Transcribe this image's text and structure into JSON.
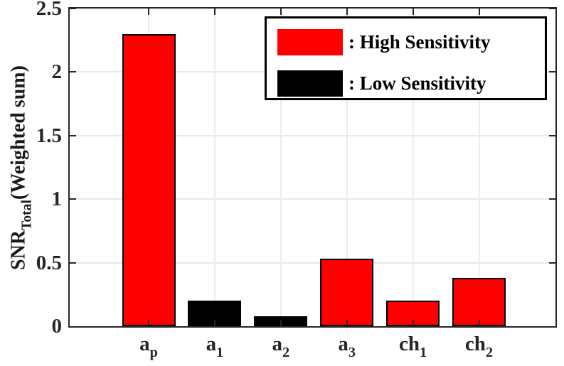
{
  "chart_data": {
    "type": "bar",
    "title": "",
    "categories": [
      {
        "base": "a",
        "sub": "p"
      },
      {
        "base": "a",
        "sub": "1"
      },
      {
        "base": "a",
        "sub": "2"
      },
      {
        "base": "a",
        "sub": "3"
      },
      {
        "base": "ch",
        "sub": "1"
      },
      {
        "base": "ch",
        "sub": "2"
      }
    ],
    "values": [
      2.3,
      0.2,
      0.08,
      0.53,
      0.2,
      0.38
    ],
    "bar_sensitivity": [
      "high",
      "low",
      "low",
      "high",
      "high",
      "high"
    ],
    "series_colors": {
      "high": "#ff0000",
      "low": "#000000"
    },
    "ylabel": {
      "main": "SNR",
      "sub": "Total",
      "rest": "(Weighted sum)"
    },
    "ytick_labels": [
      "0",
      "0.5",
      "1",
      "1.5",
      "2",
      "2.5"
    ],
    "ytick_values": [
      0,
      0.5,
      1,
      1.5,
      2,
      2.5
    ],
    "ylim": [
      0,
      2.5
    ],
    "grid": "on",
    "legend": {
      "position": "top-right",
      "entries": [
        {
          "label": ": High Sensitivity",
          "series": "High Sensitivity",
          "color": "#ff0000"
        },
        {
          "label": ": Low Sensitivity",
          "series": "Low Sensitivity",
          "color": "#000000"
        }
      ]
    },
    "colors": {
      "bar_edge": "#000000",
      "axis": "#262626",
      "grid": "#e8e8e8",
      "background": "#ffffff"
    }
  }
}
